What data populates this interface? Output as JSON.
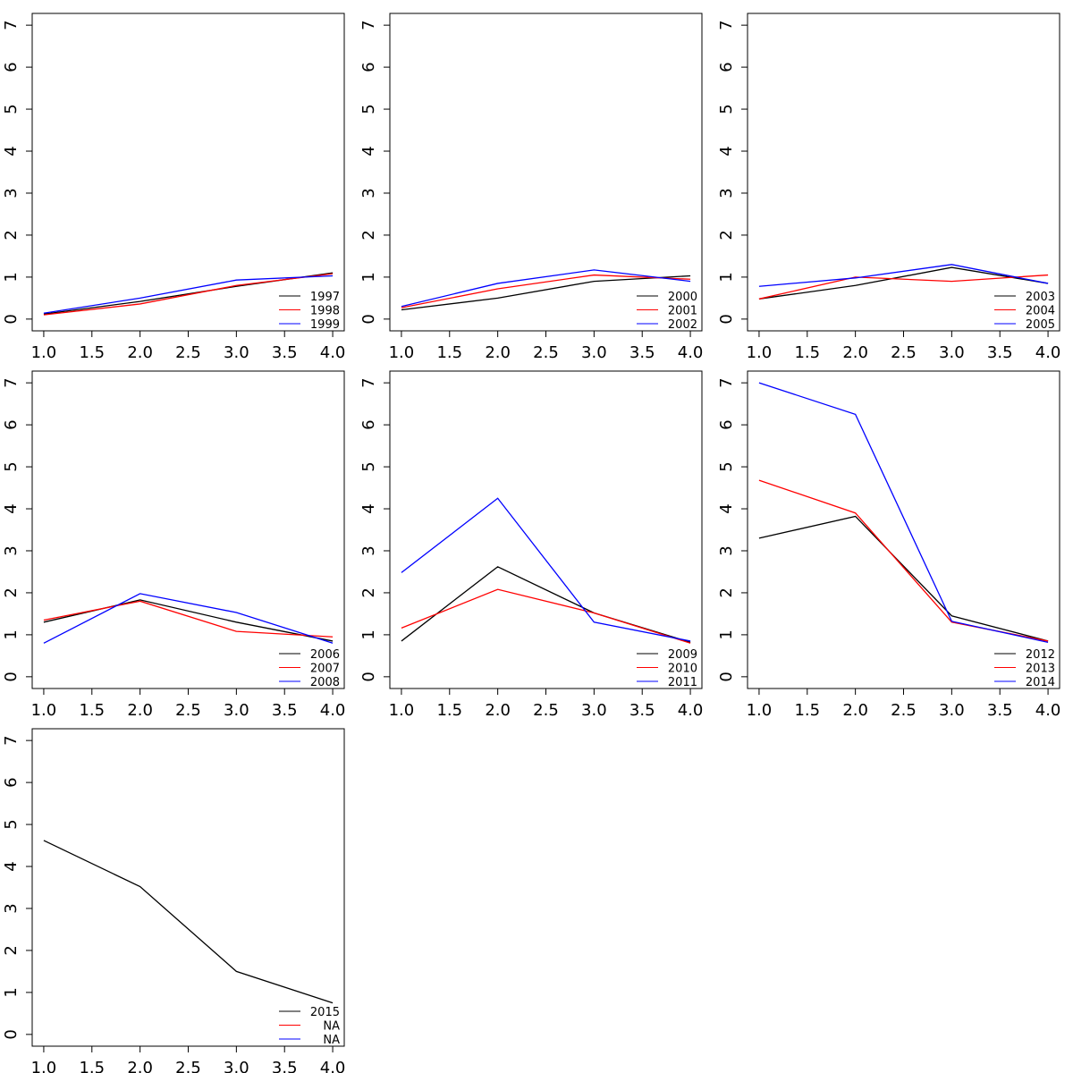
{
  "chart_data": [
    {
      "type": "line",
      "x": [
        1,
        2,
        3,
        4
      ],
      "xlim": [
        0.88,
        4.12
      ],
      "ylim": [
        -0.28,
        7.28
      ],
      "xticks": [
        {
          "value": 1,
          "label": "1.0"
        },
        1.5,
        {
          "value": 2,
          "label": "2.0"
        },
        2.5,
        {
          "value": 3,
          "label": "3.0"
        },
        3.5,
        {
          "value": 4,
          "label": "4.0"
        }
      ],
      "yticks": [
        0,
        1,
        2,
        3,
        4,
        5,
        6,
        7
      ],
      "legend": "bottomright",
      "series": [
        {
          "name": "1997",
          "color": "#000000",
          "values": [
            0.12,
            0.42,
            0.78,
            1.1
          ]
        },
        {
          "name": "1998",
          "color": "#ff0000",
          "values": [
            0.1,
            0.36,
            0.8,
            1.08
          ]
        },
        {
          "name": "1999",
          "color": "#0000ff",
          "values": [
            0.14,
            0.5,
            0.93,
            1.03
          ]
        }
      ]
    },
    {
      "type": "line",
      "x": [
        1,
        2,
        3,
        4
      ],
      "xlim": [
        0.88,
        4.12
      ],
      "ylim": [
        -0.28,
        7.28
      ],
      "xticks": [
        {
          "value": 1,
          "label": "1.0"
        },
        1.5,
        {
          "value": 2,
          "label": "2.0"
        },
        2.5,
        {
          "value": 3,
          "label": "3.0"
        },
        3.5,
        {
          "value": 4,
          "label": "4.0"
        }
      ],
      "yticks": [
        0,
        1,
        2,
        3,
        4,
        5,
        6,
        7
      ],
      "legend": "bottomright",
      "series": [
        {
          "name": "2000",
          "color": "#000000",
          "values": [
            0.22,
            0.5,
            0.9,
            1.03
          ]
        },
        {
          "name": "2001",
          "color": "#ff0000",
          "values": [
            0.27,
            0.72,
            1.05,
            0.95
          ]
        },
        {
          "name": "2002",
          "color": "#0000ff",
          "values": [
            0.3,
            0.85,
            1.17,
            0.9
          ]
        }
      ]
    },
    {
      "type": "line",
      "x": [
        1,
        2,
        3,
        4
      ],
      "xlim": [
        0.88,
        4.12
      ],
      "ylim": [
        -0.28,
        7.28
      ],
      "xticks": [
        {
          "value": 1,
          "label": "1.0"
        },
        1.5,
        {
          "value": 2,
          "label": "2.0"
        },
        2.5,
        {
          "value": 3,
          "label": "3.0"
        },
        3.5,
        {
          "value": 4,
          "label": "4.0"
        }
      ],
      "yticks": [
        0,
        1,
        2,
        3,
        4,
        5,
        6,
        7
      ],
      "legend": "bottomright",
      "series": [
        {
          "name": "2003",
          "color": "#000000",
          "values": [
            0.48,
            0.8,
            1.23,
            0.85
          ]
        },
        {
          "name": "2004",
          "color": "#ff0000",
          "values": [
            0.48,
            1.0,
            0.9,
            1.05
          ]
        },
        {
          "name": "2005",
          "color": "#0000ff",
          "values": [
            0.78,
            0.98,
            1.3,
            0.85
          ]
        }
      ]
    },
    {
      "type": "line",
      "x": [
        1,
        2,
        3,
        4
      ],
      "xlim": [
        0.88,
        4.12
      ],
      "ylim": [
        -0.28,
        7.28
      ],
      "xticks": [
        {
          "value": 1,
          "label": "1.0"
        },
        1.5,
        {
          "value": 2,
          "label": "2.0"
        },
        2.5,
        {
          "value": 3,
          "label": "3.0"
        },
        3.5,
        {
          "value": 4,
          "label": "4.0"
        }
      ],
      "yticks": [
        0,
        1,
        2,
        3,
        4,
        5,
        6,
        7
      ],
      "legend": "bottomright",
      "series": [
        {
          "name": "2006",
          "color": "#000000",
          "values": [
            1.3,
            1.83,
            1.3,
            0.85
          ]
        },
        {
          "name": "2007",
          "color": "#ff0000",
          "values": [
            1.35,
            1.8,
            1.08,
            0.95
          ]
        },
        {
          "name": "2008",
          "color": "#0000ff",
          "values": [
            0.8,
            1.98,
            1.53,
            0.8
          ]
        }
      ]
    },
    {
      "type": "line",
      "x": [
        1,
        2,
        3,
        4
      ],
      "xlim": [
        0.88,
        4.12
      ],
      "ylim": [
        -0.28,
        7.28
      ],
      "xticks": [
        {
          "value": 1,
          "label": "1.0"
        },
        1.5,
        {
          "value": 2,
          "label": "2.0"
        },
        2.5,
        {
          "value": 3,
          "label": "3.0"
        },
        3.5,
        {
          "value": 4,
          "label": "4.0"
        }
      ],
      "yticks": [
        0,
        1,
        2,
        3,
        4,
        5,
        6,
        7
      ],
      "legend": "bottomright",
      "series": [
        {
          "name": "2009",
          "color": "#000000",
          "values": [
            0.85,
            2.62,
            1.52,
            0.82
          ]
        },
        {
          "name": "2010",
          "color": "#ff0000",
          "values": [
            1.16,
            2.08,
            1.52,
            0.8
          ]
        },
        {
          "name": "2011",
          "color": "#0000ff",
          "values": [
            2.48,
            4.25,
            1.3,
            0.85
          ]
        }
      ]
    },
    {
      "type": "line",
      "x": [
        1,
        2,
        3,
        4
      ],
      "xlim": [
        0.88,
        4.12
      ],
      "ylim": [
        -0.28,
        7.28
      ],
      "xticks": [
        {
          "value": 1,
          "label": "1.0"
        },
        1.5,
        {
          "value": 2,
          "label": "2.0"
        },
        2.5,
        {
          "value": 3,
          "label": "3.0"
        },
        3.5,
        {
          "value": 4,
          "label": "4.0"
        }
      ],
      "yticks": [
        0,
        1,
        2,
        3,
        4,
        5,
        6,
        7
      ],
      "legend": "bottomright",
      "series": [
        {
          "name": "2012",
          "color": "#000000",
          "values": [
            3.3,
            3.82,
            1.45,
            0.85
          ]
        },
        {
          "name": "2013",
          "color": "#ff0000",
          "values": [
            4.68,
            3.9,
            1.3,
            0.85
          ]
        },
        {
          "name": "2014",
          "color": "#0000ff",
          "values": [
            7.0,
            6.25,
            1.32,
            0.82
          ]
        }
      ]
    },
    {
      "type": "line",
      "x": [
        1,
        2,
        3,
        4
      ],
      "xlim": [
        0.88,
        4.12
      ],
      "ylim": [
        -0.28,
        7.28
      ],
      "xticks": [
        {
          "value": 1,
          "label": "1.0"
        },
        1.5,
        {
          "value": 2,
          "label": "2.0"
        },
        2.5,
        {
          "value": 3,
          "label": "3.0"
        },
        3.5,
        {
          "value": 4,
          "label": "4.0"
        }
      ],
      "yticks": [
        0,
        1,
        2,
        3,
        4,
        5,
        6,
        7
      ],
      "legend": "bottomright",
      "series": [
        {
          "name": "2015",
          "color": "#000000",
          "values": [
            4.62,
            3.52,
            1.5,
            0.75
          ]
        },
        {
          "name": "NA",
          "color": "#ff0000",
          "values": [
            null,
            null,
            null,
            null
          ]
        },
        {
          "name": "NA",
          "color": "#0000ff",
          "values": [
            null,
            null,
            null,
            null
          ]
        }
      ]
    }
  ]
}
